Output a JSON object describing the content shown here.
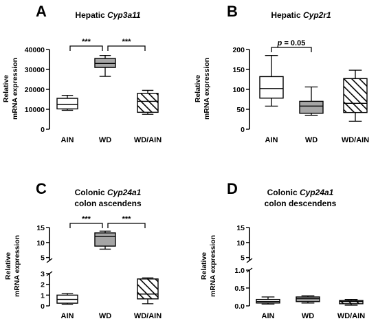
{
  "chart_data": [
    {
      "type": "box",
      "panel": "A",
      "title": "Hepatic ",
      "title_gene": "Cyp3a11",
      "ylabel": [
        "Relative",
        "mRNA expression"
      ],
      "categories": [
        "AIN",
        "WD",
        "WD/AIN"
      ],
      "yticks": [
        0,
        10000,
        20000,
        30000,
        40000
      ],
      "ytick_labels": [
        "0",
        "10000",
        "20000",
        "30000",
        "40000"
      ],
      "ylim": [
        0,
        40000
      ],
      "boxes": [
        {
          "category": "AIN",
          "min": 9500,
          "q1": 10200,
          "median": 12500,
          "q3": 15500,
          "max": 17000
        },
        {
          "category": "WD",
          "min": 26500,
          "q1": 31000,
          "median": 33000,
          "q3": 35500,
          "max": 37000
        },
        {
          "category": "WD/AIN",
          "min": 7500,
          "q1": 8500,
          "median": 14000,
          "q3": 18000,
          "max": 19500
        }
      ],
      "significance": [
        {
          "from": 0,
          "to": 1,
          "label": "***"
        },
        {
          "from": 1,
          "to": 2,
          "label": "***"
        }
      ]
    },
    {
      "type": "box",
      "panel": "B",
      "title": "Hepatic ",
      "title_gene": "Cyp2r1",
      "ylabel": [
        "Relative",
        "mRNA expression"
      ],
      "categories": [
        "AIN",
        "WD",
        "WD/AIN"
      ],
      "yticks": [
        0,
        50,
        100,
        150,
        200
      ],
      "ytick_labels": [
        "0",
        "50",
        "100",
        "150",
        "200"
      ],
      "ylim": [
        0,
        200
      ],
      "boxes": [
        {
          "category": "AIN",
          "min": 58,
          "q1": 78,
          "median": 102,
          "q3": 132,
          "max": 185
        },
        {
          "category": "WD",
          "min": 35,
          "q1": 40,
          "median": 58,
          "q3": 70,
          "max": 106
        },
        {
          "category": "WD/AIN",
          "min": 20,
          "q1": 42,
          "median": 65,
          "q3": 127,
          "max": 148
        }
      ],
      "significance": [
        {
          "from": 0,
          "to": 1,
          "label": "p = 0.05"
        }
      ]
    },
    {
      "type": "box",
      "panel": "C",
      "title_lines": [
        "Colonic ",
        "colon ascendens"
      ],
      "title_gene": "Cyp24a1",
      "ylabel": [
        "Relative",
        "mRNA expression"
      ],
      "categories": [
        "AIN",
        "WD",
        "WD/AIN"
      ],
      "broken_axis": true,
      "upper_ticks": [
        5,
        10,
        15
      ],
      "upper_tick_labels": [
        "5",
        "10",
        "15"
      ],
      "upper_range": [
        4,
        15
      ],
      "lower_ticks": [
        0,
        1,
        2,
        3
      ],
      "lower_tick_labels": [
        "0",
        "1",
        "2",
        "3"
      ],
      "lower_range": [
        0,
        3
      ],
      "boxes": [
        {
          "category": "AIN",
          "min": 0.15,
          "q1": 0.25,
          "median": 0.6,
          "q3": 1.0,
          "max": 1.15
        },
        {
          "category": "WD",
          "min": 7.8,
          "q1": 8.8,
          "median": 12.0,
          "q3": 13.2,
          "max": 13.8
        },
        {
          "category": "WD/AIN",
          "min": 0.2,
          "q1": 0.65,
          "median": 1.1,
          "q3": 2.5,
          "max": 2.6
        }
      ],
      "significance": [
        {
          "from": 0,
          "to": 1,
          "label": "***"
        },
        {
          "from": 1,
          "to": 2,
          "label": "***"
        }
      ]
    },
    {
      "type": "box",
      "panel": "D",
      "title_lines": [
        "Colonic ",
        "colon descendens"
      ],
      "title_gene": "Cyp24a1",
      "ylabel": [
        "Relative",
        "mRNA expression"
      ],
      "categories": [
        "AIN",
        "WD",
        "WD/AIN"
      ],
      "broken_axis": true,
      "upper_ticks": [
        5,
        10,
        15
      ],
      "upper_tick_labels": [
        "5",
        "10",
        "15"
      ],
      "upper_range": [
        4,
        15
      ],
      "lower_ticks": [
        0,
        0.5,
        1.0
      ],
      "lower_tick_labels": [
        "0.0",
        "0.5",
        "1.0"
      ],
      "lower_range": [
        0,
        1.0
      ],
      "boxes": [
        {
          "category": "AIN",
          "min": 0.05,
          "q1": 0.08,
          "median": 0.12,
          "q3": 0.18,
          "max": 0.25
        },
        {
          "category": "WD",
          "min": 0.08,
          "q1": 0.12,
          "median": 0.2,
          "q3": 0.25,
          "max": 0.28
        },
        {
          "category": "WD/AIN",
          "min": 0.02,
          "q1": 0.06,
          "median": 0.12,
          "q3": 0.15,
          "max": 0.18
        }
      ],
      "significance": []
    }
  ],
  "fills": [
    "#ffffff",
    "#a6a6a6",
    "hatch"
  ]
}
